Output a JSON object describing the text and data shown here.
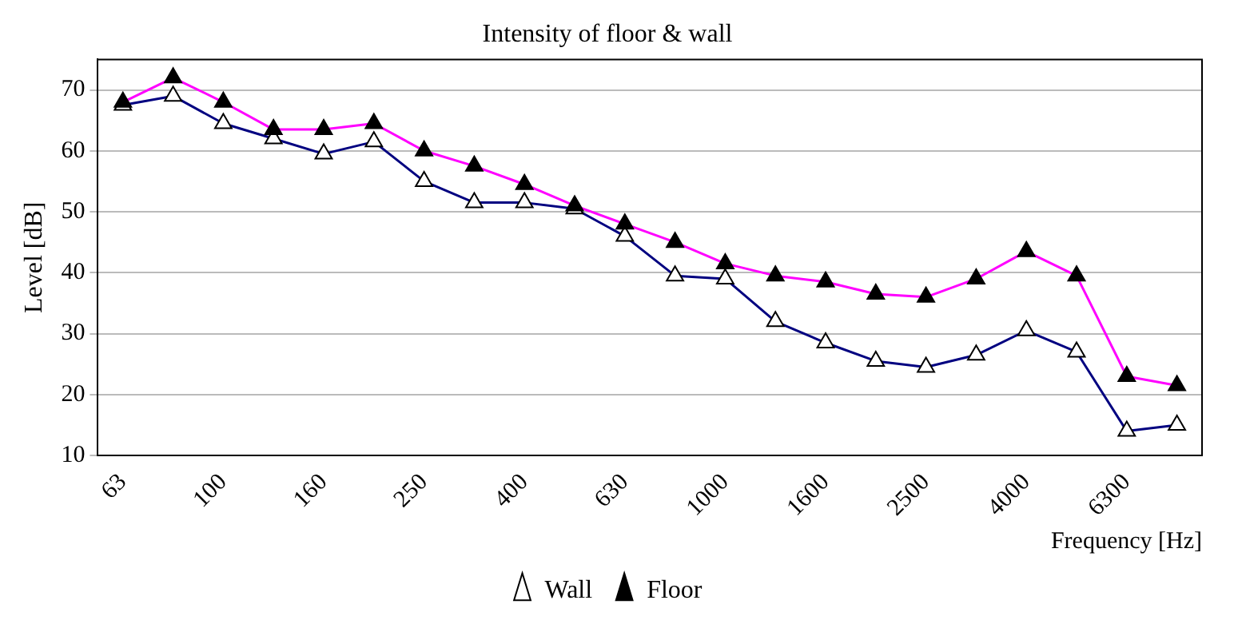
{
  "chart_data": {
    "type": "line",
    "title": "Intensity of floor & wall",
    "xlabel": "Frequency [Hz]",
    "ylabel": "Level [dB]",
    "categories": [
      "63",
      null,
      "100",
      null,
      "160",
      null,
      "250",
      null,
      "400",
      null,
      "630",
      null,
      "1000",
      null,
      "1600",
      null,
      "2500",
      null,
      "4000",
      null,
      "6300",
      null
    ],
    "series": [
      {
        "name": "Wall",
        "color": "#000080",
        "values": [
          67.5,
          69,
          64.5,
          62,
          59.5,
          61.5,
          55,
          51.5,
          51.5,
          50.5,
          46,
          39.5,
          39,
          32,
          28.5,
          25.5,
          24.5,
          26.5,
          30.5,
          27,
          14,
          15
        ]
      },
      {
        "name": "Floor",
        "color": "#ff00ff",
        "values": [
          68,
          72,
          68,
          63.5,
          63.5,
          64.5,
          60,
          57.5,
          54.5,
          51,
          48,
          45,
          41.5,
          39.5,
          38.5,
          36.5,
          36,
          39,
          43.5,
          39.5,
          23,
          21.5
        ]
      }
    ],
    "ylim": [
      10,
      75
    ],
    "yticks": [
      10,
      20,
      30,
      40,
      50,
      60,
      70
    ],
    "grid": "y",
    "legend": "bottom",
    "marker": "triangle",
    "line_style": "solid"
  }
}
